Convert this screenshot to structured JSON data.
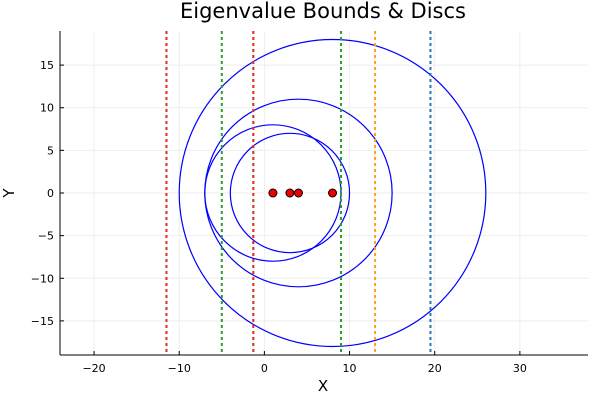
{
  "chart_data": {
    "type": "scatter",
    "title": "Eigenvalue Bounds & Discs",
    "xlabel": "X",
    "ylabel": "Y",
    "xlim": [
      -24,
      38
    ],
    "ylim": [
      -19,
      19
    ],
    "xticks": [
      -20,
      -10,
      0,
      10,
      20,
      30
    ],
    "yticks": [
      -15,
      -10,
      -5,
      0,
      5,
      10,
      15
    ],
    "grid": true,
    "legend": "none",
    "eigenvalues": [
      {
        "x": 1,
        "y": 0
      },
      {
        "x": 3,
        "y": 0
      },
      {
        "x": 4,
        "y": 0
      },
      {
        "x": 8,
        "y": 0
      }
    ],
    "discs": [
      {
        "cx": 8,
        "cy": 0,
        "r": 18
      },
      {
        "cx": 4,
        "cy": 0,
        "r": 11
      },
      {
        "cx": 1,
        "cy": 0,
        "r": 8
      },
      {
        "cx": 3,
        "cy": 0,
        "r": 7
      }
    ],
    "bound_lines": [
      {
        "x": -11.5,
        "color": "#e26f46"
      },
      {
        "x": -11.5,
        "color": "#e0332b"
      },
      {
        "x": -5,
        "color": "#2ca02c"
      },
      {
        "x": -1.3,
        "color": "#e26f46"
      },
      {
        "x": -1.3,
        "color": "#e0332b"
      },
      {
        "x": 9,
        "color": "#4aa84a"
      },
      {
        "x": 9,
        "color": "#2ca02c"
      },
      {
        "x": 13,
        "color": "#ff9f1c"
      },
      {
        "x": 19.5,
        "color": "#1f77b4"
      }
    ],
    "colors": {
      "disc": "#0000ff",
      "point_fill": "#ee0000",
      "point_stroke": "#000000",
      "grid": "#eeeeee"
    }
  }
}
